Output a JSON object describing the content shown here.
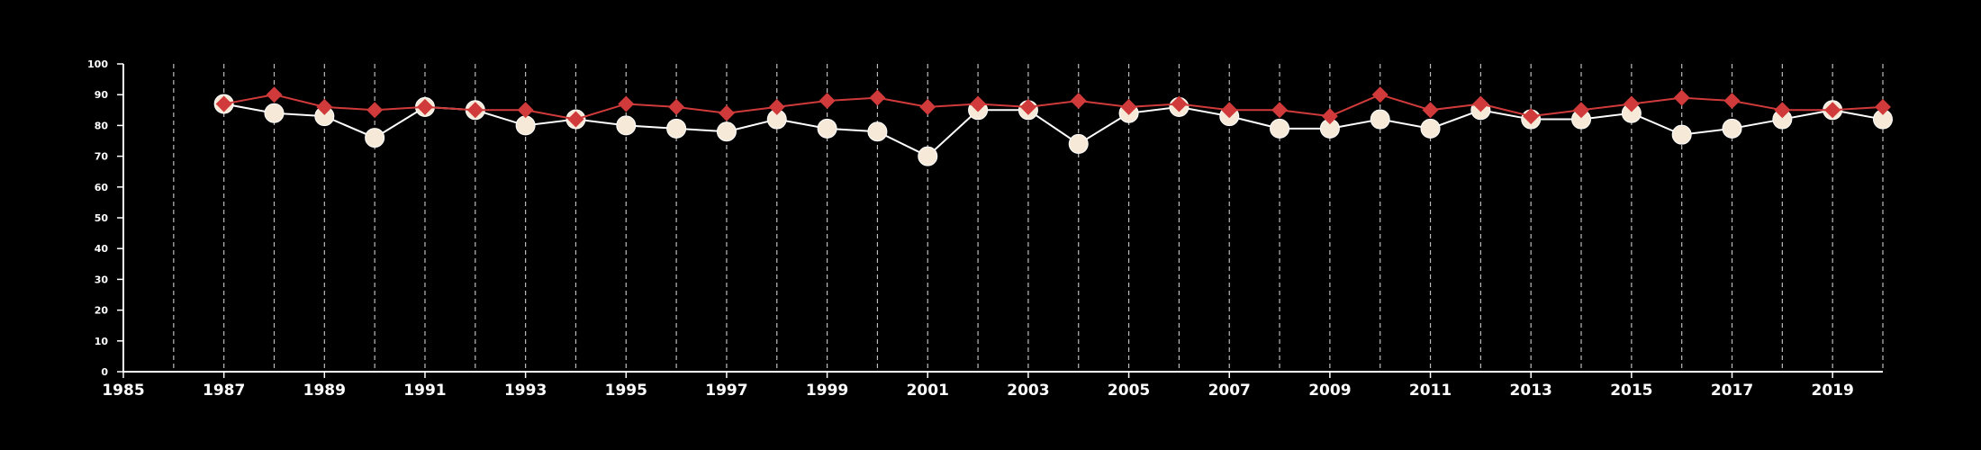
{
  "colors": {
    "background": "#000000",
    "axis": "#ffffff",
    "grid": "#bdbdbd",
    "series_a_line": "#ffffff",
    "series_a_marker": "#f7e9d7",
    "series_b": "#d03a3a"
  },
  "chart_data": {
    "type": "line",
    "title": "",
    "xlabel": "",
    "ylabel": "",
    "xlim": [
      1985,
      2020
    ],
    "ylim": [
      0,
      100
    ],
    "x_ticks": [
      1985,
      1987,
      1989,
      1991,
      1993,
      1995,
      1997,
      1999,
      2001,
      2003,
      2005,
      2007,
      2009,
      2011,
      2013,
      2015,
      2017,
      2019
    ],
    "y_ticks": [
      0,
      10,
      20,
      30,
      40,
      50,
      60,
      70,
      80,
      90,
      100
    ],
    "grid": "vertical dashed at every year",
    "legend": "none",
    "x": [
      1987,
      1988,
      1989,
      1990,
      1991,
      1992,
      1993,
      1994,
      1995,
      1996,
      1997,
      1998,
      1999,
      2000,
      2001,
      2002,
      2003,
      2004,
      2005,
      2006,
      2007,
      2008,
      2009,
      2010,
      2011,
      2012,
      2013,
      2014,
      2015,
      2016,
      2017,
      2018,
      2019,
      2020
    ],
    "series": [
      {
        "marker": "circle",
        "values": [
          87,
          84,
          83,
          76,
          86,
          85,
          80,
          82,
          80,
          79,
          78,
          82,
          79,
          78,
          70,
          85,
          85,
          74,
          84,
          86,
          83,
          79,
          79,
          82,
          79,
          85,
          82,
          82,
          84,
          77,
          79,
          82,
          85,
          82
        ]
      },
      {
        "marker": "diamond",
        "values": [
          87,
          90,
          86,
          85,
          86,
          85,
          85,
          82,
          87,
          86,
          84,
          86,
          88,
          89,
          86,
          87,
          86,
          88,
          86,
          87,
          85,
          85,
          83,
          90,
          85,
          87,
          83,
          85,
          87,
          89,
          88,
          85,
          85,
          86
        ]
      }
    ]
  }
}
